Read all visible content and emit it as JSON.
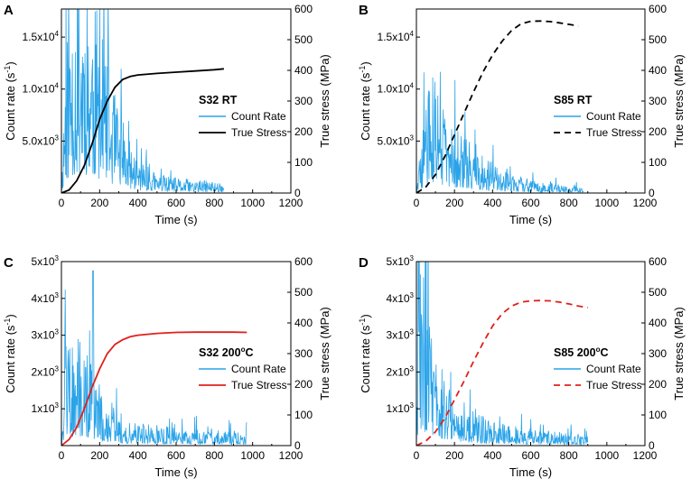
{
  "figure": {
    "colors": {
      "count_rate": "#2aa3e8",
      "stress_black": "#000000",
      "stress_red": "#e0201b"
    }
  },
  "chart_data": [
    {
      "type": "line",
      "panel_label": "A",
      "title": "S32 RT",
      "xlabel": "Time (s)",
      "ylabel_left": "Count rate (s-1)",
      "ylabel_right": "True stress (MPa)",
      "xlim": [
        0,
        1200
      ],
      "ylim_left": [
        0,
        17700
      ],
      "ylim_right": [
        0,
        600
      ],
      "x_ticks": [
        "0",
        "200",
        "400",
        "600",
        "800",
        "1000",
        "1200"
      ],
      "left_ticks": [
        {
          "value": 5000,
          "label": "5.0x10",
          "exp": "3"
        },
        {
          "value": 10000,
          "label": "1.0x10",
          "exp": "4"
        },
        {
          "value": 15000,
          "label": "1.5x10",
          "exp": "4"
        }
      ],
      "right_ticks": [
        "0",
        "100",
        "200",
        "300",
        "400",
        "500",
        "600"
      ],
      "legend": [
        "Count Rate",
        "True Stress"
      ],
      "stress_style": "solid",
      "stress_color": "#000000",
      "count_color": "#2aa3e8",
      "series": [
        {
          "name": "Count Rate",
          "axis": "left",
          "noisy": true,
          "seed": 11,
          "x_end": 850,
          "spike": [
            [
              0,
              0
            ],
            [
              20,
              8000
            ],
            [
              60,
              11000
            ],
            [
              100,
              12500
            ],
            [
              150,
              11000
            ],
            [
              200,
              9000
            ],
            [
              260,
              6000
            ],
            [
              320,
              3500
            ],
            [
              400,
              1800
            ],
            [
              500,
              1000
            ],
            [
              600,
              800
            ],
            [
              700,
              700
            ],
            [
              850,
              600
            ]
          ]
        },
        {
          "name": "True Stress",
          "axis": "right",
          "x": [
            0,
            40,
            80,
            120,
            160,
            200,
            240,
            280,
            320,
            360,
            400,
            500,
            600,
            700,
            800,
            850
          ],
          "y": [
            0,
            10,
            40,
            90,
            160,
            240,
            300,
            345,
            370,
            380,
            385,
            390,
            394,
            398,
            402,
            405
          ]
        }
      ]
    },
    {
      "type": "line",
      "panel_label": "B",
      "title": "S85 RT",
      "xlabel": "Time (s)",
      "ylabel_left": "Count rate (s-1)",
      "ylabel_right": "True stress (MPa)",
      "xlim": [
        0,
        1200
      ],
      "ylim_left": [
        0,
        17700
      ],
      "ylim_right": [
        0,
        600
      ],
      "x_ticks": [
        "0",
        "200",
        "400",
        "600",
        "800",
        "1000",
        "1200"
      ],
      "left_ticks": [
        {
          "value": 5000,
          "label": "5.0x10",
          "exp": "3"
        },
        {
          "value": 10000,
          "label": "1.0x10",
          "exp": "4"
        },
        {
          "value": 15000,
          "label": "1.5x10",
          "exp": "4"
        }
      ],
      "right_ticks": [
        "0",
        "100",
        "200",
        "300",
        "400",
        "500",
        "600"
      ],
      "legend": [
        "Count Rate",
        "True Stress"
      ],
      "stress_style": "dashed",
      "stress_color": "#000000",
      "count_color": "#2aa3e8",
      "series": [
        {
          "name": "Count Rate",
          "axis": "left",
          "noisy": true,
          "seed": 29,
          "x_end": 880,
          "spike": [
            [
              0,
              0
            ],
            [
              30,
              3000
            ],
            [
              70,
              6500
            ],
            [
              100,
              6000
            ],
            [
              150,
              4500
            ],
            [
              200,
              3500
            ],
            [
              300,
              2500
            ],
            [
              400,
              1500
            ],
            [
              500,
              1000
            ],
            [
              600,
              700
            ],
            [
              700,
              500
            ],
            [
              880,
              300
            ]
          ]
        },
        {
          "name": "True Stress",
          "axis": "right",
          "x": [
            0,
            50,
            100,
            150,
            200,
            250,
            300,
            350,
            400,
            450,
            500,
            550,
            600,
            650,
            700,
            750,
            800,
            850
          ],
          "y": [
            0,
            20,
            60,
            120,
            190,
            260,
            330,
            395,
            450,
            495,
            530,
            552,
            560,
            561,
            559,
            555,
            550,
            545
          ]
        }
      ]
    },
    {
      "type": "line",
      "panel_label": "C",
      "title": "S32 200",
      "title_sup": "o",
      "title_suffix": "C",
      "xlabel": "Time (s)",
      "ylabel_left": "Count rate (s-1)",
      "ylabel_right": "True stress (MPa)",
      "xlim": [
        0,
        1200
      ],
      "ylim_left": [
        0,
        5000
      ],
      "ylim_right": [
        0,
        600
      ],
      "x_ticks": [
        "0",
        "200",
        "400",
        "600",
        "800",
        "1000",
        "1200"
      ],
      "left_ticks": [
        {
          "value": 1000,
          "label": "1x10",
          "exp": "3"
        },
        {
          "value": 2000,
          "label": "2x10",
          "exp": "3"
        },
        {
          "value": 3000,
          "label": "3x10",
          "exp": "3"
        },
        {
          "value": 4000,
          "label": "4x10",
          "exp": "3"
        },
        {
          "value": 5000,
          "label": "5x10",
          "exp": "3"
        }
      ],
      "right_ticks": [
        "0",
        "100",
        "200",
        "300",
        "400",
        "500",
        "600"
      ],
      "legend": [
        "Count Rate",
        "True Stress"
      ],
      "stress_style": "solid",
      "stress_color": "#e0201b",
      "count_color": "#2aa3e8",
      "series": [
        {
          "name": "Count Rate",
          "axis": "left",
          "noisy": true,
          "seed": 47,
          "x_end": 970,
          "peak": [
            165,
            4750
          ],
          "spike": [
            [
              0,
              0
            ],
            [
              20,
              1300
            ],
            [
              60,
              1600
            ],
            [
              100,
              1600
            ],
            [
              150,
              1400
            ],
            [
              200,
              900
            ],
            [
              260,
              600
            ],
            [
              350,
              400
            ],
            [
              500,
              300
            ],
            [
              700,
              250
            ],
            [
              970,
              200
            ]
          ]
        },
        {
          "name": "True Stress",
          "axis": "right",
          "x": [
            0,
            40,
            80,
            120,
            160,
            200,
            240,
            280,
            320,
            360,
            400,
            500,
            600,
            700,
            800,
            900,
            970
          ],
          "y": [
            0,
            20,
            60,
            120,
            190,
            250,
            300,
            330,
            345,
            355,
            360,
            366,
            369,
            370,
            370,
            370,
            369
          ]
        }
      ]
    },
    {
      "type": "line",
      "panel_label": "D",
      "title": "S85 200",
      "title_sup": "o",
      "title_suffix": "C",
      "xlabel": "Time (s)",
      "ylabel_left": "Count rate (s-1)",
      "ylabel_right": "True stress (MPa)",
      "xlim": [
        0,
        1200
      ],
      "ylim_left": [
        0,
        5000
      ],
      "ylim_right": [
        0,
        600
      ],
      "x_ticks": [
        "0",
        "200",
        "400",
        "600",
        "800",
        "1000",
        "1200"
      ],
      "left_ticks": [
        {
          "value": 1000,
          "label": "1x10",
          "exp": "3"
        },
        {
          "value": 2000,
          "label": "2x10",
          "exp": "3"
        },
        {
          "value": 3000,
          "label": "3x10",
          "exp": "3"
        },
        {
          "value": 4000,
          "label": "4x10",
          "exp": "3"
        },
        {
          "value": 5000,
          "label": "5x10",
          "exp": "3"
        }
      ],
      "right_ticks": [
        "0",
        "100",
        "200",
        "300",
        "400",
        "500",
        "600"
      ],
      "legend": [
        "Count Rate",
        "True Stress"
      ],
      "stress_style": "dashed",
      "stress_color": "#e0201b",
      "count_color": "#2aa3e8",
      "series": [
        {
          "name": "Count Rate",
          "axis": "left",
          "noisy": true,
          "seed": 83,
          "x_end": 900,
          "peak": [
            10,
            5000
          ],
          "spike": [
            [
              0,
              0
            ],
            [
              15,
              3200
            ],
            [
              40,
              2500
            ],
            [
              80,
              1800
            ],
            [
              120,
              1300
            ],
            [
              200,
              800
            ],
            [
              300,
              500
            ],
            [
              400,
              350
            ],
            [
              600,
              250
            ],
            [
              900,
              150
            ]
          ]
        },
        {
          "name": "True Stress",
          "axis": "right",
          "x": [
            0,
            50,
            100,
            150,
            200,
            250,
            300,
            350,
            400,
            450,
            500,
            550,
            600,
            650,
            700,
            750,
            800,
            850,
            900
          ],
          "y": [
            0,
            15,
            45,
            90,
            150,
            210,
            275,
            335,
            390,
            430,
            455,
            468,
            472,
            473,
            472,
            468,
            462,
            455,
            450
          ]
        }
      ]
    }
  ]
}
